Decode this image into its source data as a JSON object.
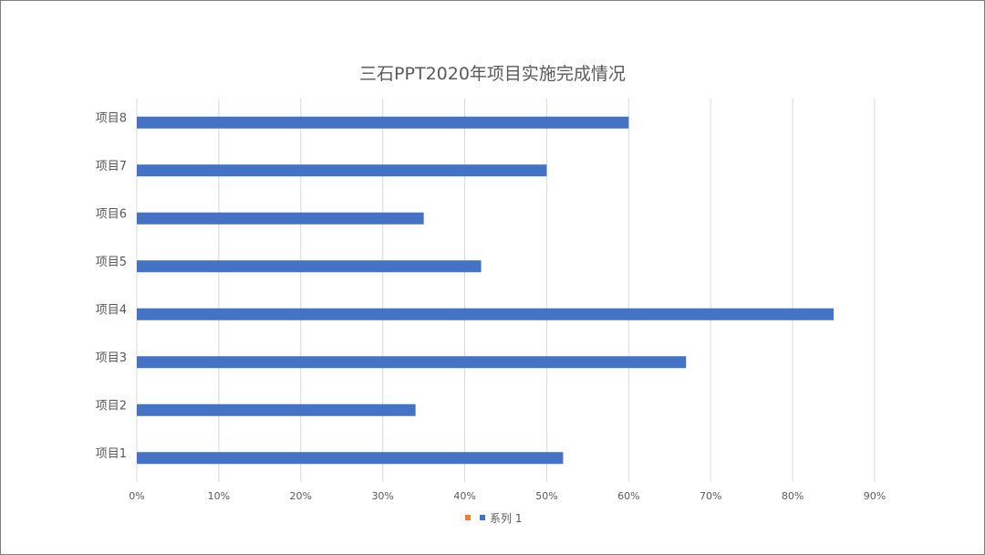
{
  "chart_data": {
    "type": "bar",
    "orientation": "horizontal",
    "title": "三石PPT2020年项目实施完成情况",
    "categories": [
      "项目1",
      "项目2",
      "项目3",
      "项目4",
      "项目5",
      "项目6",
      "项目7",
      "项目8"
    ],
    "series": [
      {
        "name": "系列 1",
        "values": [
          0.52,
          0.34,
          0.67,
          0.85,
          0.42,
          0.35,
          0.5,
          0.6
        ],
        "color": "#4472C4"
      }
    ],
    "xlim": [
      0,
      0.9
    ],
    "x_ticks": [
      "0%",
      "10%",
      "20%",
      "30%",
      "40%",
      "50%",
      "60%",
      "70%",
      "80%",
      "90%"
    ],
    "grid": "vertical",
    "legend": {
      "position": "bottom",
      "entries": [
        {
          "label": "",
          "color": "#ED7D31"
        },
        {
          "label": "系列 1",
          "color": "#4472C4"
        }
      ]
    }
  }
}
